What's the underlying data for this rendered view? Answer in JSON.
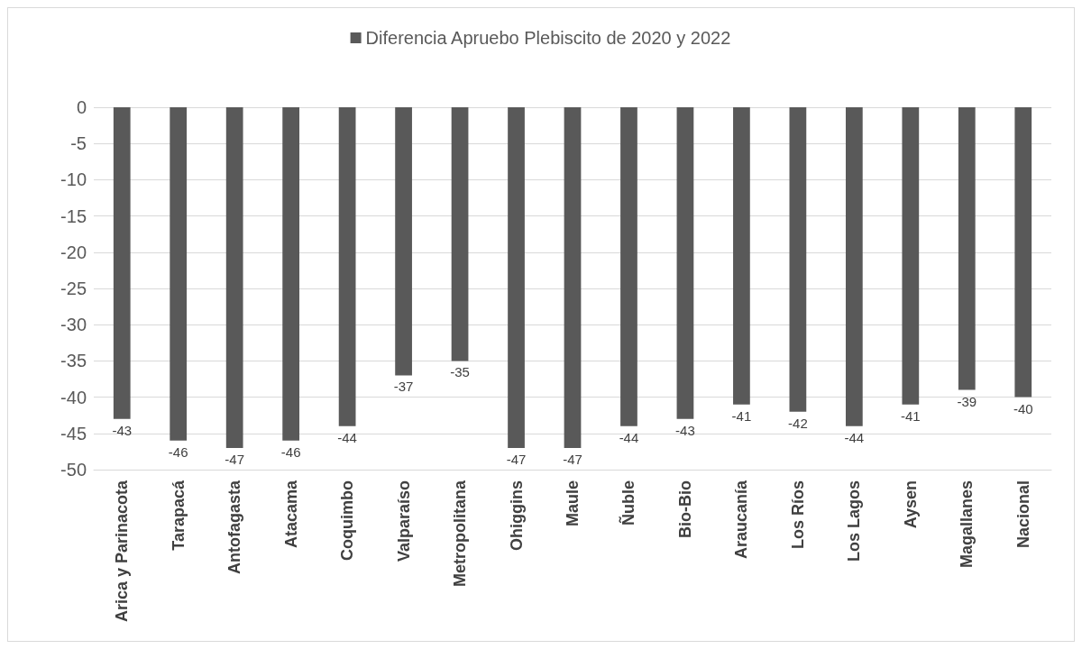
{
  "chart_data": {
    "type": "bar",
    "categories": [
      "Arica y Parinacota",
      "Tarapacá",
      "Antofagasta",
      "Atacama",
      "Coquimbo",
      "Valparaíso",
      "Metropolitana",
      "Ohiggins",
      "Maule",
      "Ñuble",
      "Bio-Bio",
      "Araucanía",
      "Los Ríos",
      "Los Lagos",
      "Aysen",
      "Magallanes",
      "Nacional"
    ],
    "series": [
      {
        "name": "Diferencia Apruebo Plebiscito de 2020 y 2022",
        "color": "#595959",
        "values": [
          -43,
          -46,
          -47,
          -46,
          -44,
          -37,
          -35,
          -47,
          -47,
          -44,
          -43,
          -41,
          -42,
          -44,
          -41,
          -39,
          -40
        ]
      }
    ],
    "ylim": [
      -50,
      0
    ],
    "yticks": [
      0,
      -5,
      -10,
      -15,
      -20,
      -25,
      -30,
      -35,
      -40,
      -45,
      -50
    ],
    "grid": "y",
    "legend": "top",
    "data_labels": true
  }
}
